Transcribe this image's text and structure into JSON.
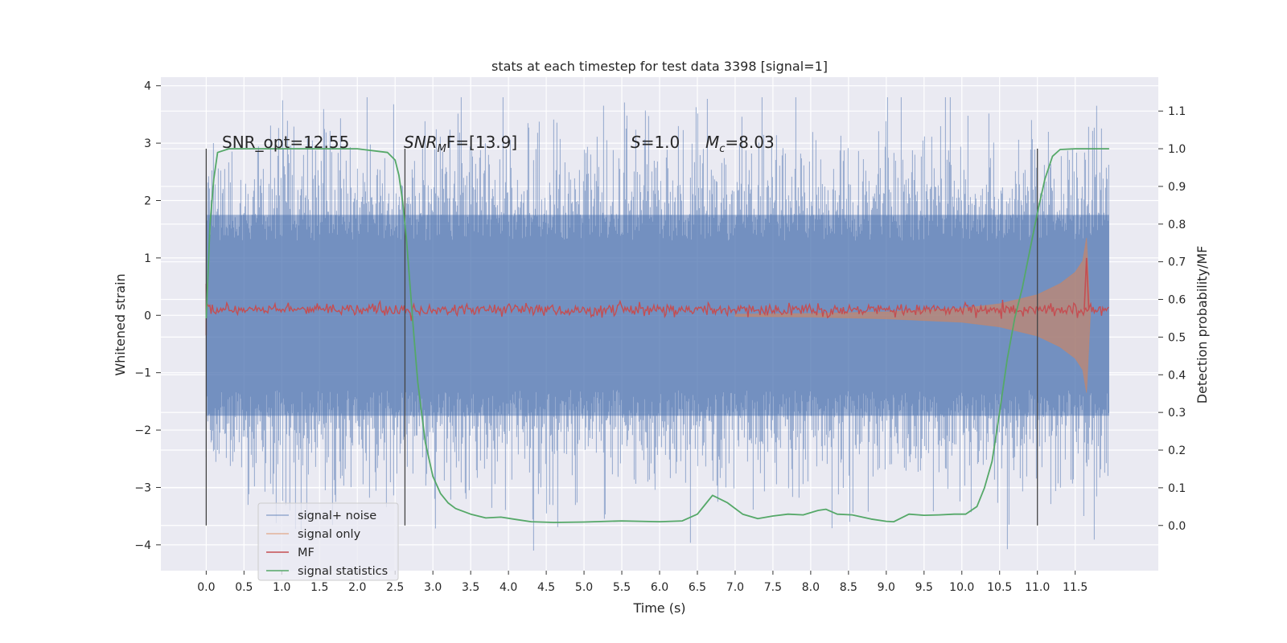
{
  "chart_data": {
    "type": "line",
    "title": "stats at each timestep for test data 3398 [signal=1]",
    "xlabel": "Time (s)",
    "ylabel": "Whitened strain",
    "y2label": "Detection probability/MF",
    "xlim": [
      -0.6,
      12.6
    ],
    "ylim": [
      -4.45,
      4.15
    ],
    "y2lim": [
      -0.12,
      1.19
    ],
    "xticks": [
      0.0,
      0.5,
      1.0,
      1.5,
      2.0,
      2.5,
      3.0,
      3.5,
      4.0,
      4.5,
      5.0,
      5.5,
      6.0,
      6.5,
      7.0,
      7.5,
      8.0,
      8.5,
      9.0,
      9.5,
      10.0,
      10.5,
      11.0,
      11.5
    ],
    "xtick_labels": [
      "0.0",
      "0.5",
      "1.0",
      "1.5",
      "2.0",
      "2.5",
      "3.0",
      "3.5",
      "4.0",
      "4.5",
      "5.0",
      "5.5",
      "6.0",
      "6.5",
      "7.0",
      "7.5",
      "8.0",
      "8.5",
      "9.0",
      "9.5",
      "10.0",
      "10.5",
      "11.0",
      "11.5"
    ],
    "yticks": [
      -4,
      -3,
      -2,
      -1,
      0,
      1,
      2,
      3,
      4
    ],
    "ytick_labels": [
      "−4",
      "−3",
      "−2",
      "−1",
      "0",
      "1",
      "2",
      "3",
      "4"
    ],
    "y2ticks": [
      0.0,
      0.1,
      0.2,
      0.3,
      0.4,
      0.5,
      0.6,
      0.7,
      0.8,
      0.9,
      1.0,
      1.1
    ],
    "y2tick_labels": [
      "0.0",
      "0.1",
      "0.2",
      "0.3",
      "0.4",
      "0.5",
      "0.6",
      "0.7",
      "0.8",
      "0.9",
      "1.0",
      "1.1"
    ],
    "grid": true,
    "legend_position": "lower-left",
    "series": [
      {
        "name": "signal+ noise",
        "color": "#4c72b0",
        "axis": "left",
        "style": "noise band",
        "x_range": [
          0.0,
          11.95
        ],
        "typical_range": [
          -1.75,
          1.75
        ],
        "peak_range": [
          -4.1,
          3.8
        ]
      },
      {
        "name": "signal only",
        "color": "#dd8452",
        "axis": "left",
        "style": "chirp envelope",
        "x": [
          7.0,
          8.0,
          9.0,
          10.0,
          10.5,
          11.0,
          11.3,
          11.5,
          11.6,
          11.65,
          11.7
        ],
        "amplitude": [
          0.02,
          0.03,
          0.06,
          0.12,
          0.2,
          0.36,
          0.55,
          0.75,
          0.95,
          1.35,
          0.0
        ]
      },
      {
        "name": "MF",
        "color": "#c44e52",
        "axis": "left",
        "style": "jittered line",
        "baseline": 0.1,
        "spike_x": 11.65,
        "spike_y": 1.0
      },
      {
        "name": "signal statistics",
        "color": "#55a868",
        "axis": "right",
        "x": [
          0.0,
          0.05,
          0.1,
          0.15,
          0.3,
          0.6,
          1.0,
          1.5,
          2.0,
          2.4,
          2.5,
          2.55,
          2.6,
          2.65,
          2.7,
          2.75,
          2.8,
          2.9,
          3.0,
          3.1,
          3.2,
          3.3,
          3.5,
          3.7,
          3.9,
          4.1,
          4.3,
          4.6,
          5.0,
          5.5,
          6.0,
          6.3,
          6.5,
          6.6,
          6.7,
          6.9,
          7.1,
          7.3,
          7.5,
          7.7,
          7.9,
          8.1,
          8.2,
          8.35,
          8.55,
          8.8,
          9.0,
          9.1,
          9.3,
          9.5,
          9.7,
          9.9,
          10.05,
          10.2,
          10.3,
          10.4,
          10.5,
          10.6,
          10.7,
          10.8,
          10.9,
          11.0,
          11.1,
          11.2,
          11.3,
          11.5,
          11.95
        ],
        "y": [
          0.55,
          0.8,
          0.92,
          0.99,
          1.0,
          1.0,
          1.0,
          1.0,
          1.0,
          0.99,
          0.97,
          0.93,
          0.86,
          0.76,
          0.63,
          0.5,
          0.38,
          0.22,
          0.13,
          0.085,
          0.06,
          0.045,
          0.03,
          0.02,
          0.022,
          0.016,
          0.01,
          0.008,
          0.009,
          0.012,
          0.01,
          0.012,
          0.03,
          0.055,
          0.08,
          0.06,
          0.03,
          0.018,
          0.025,
          0.03,
          0.028,
          0.04,
          0.043,
          0.03,
          0.028,
          0.017,
          0.011,
          0.01,
          0.03,
          0.027,
          0.028,
          0.03,
          0.03,
          0.05,
          0.1,
          0.17,
          0.3,
          0.44,
          0.55,
          0.63,
          0.73,
          0.83,
          0.92,
          0.98,
          0.998,
          1.0,
          1.0
        ]
      }
    ],
    "vertical_lines": [
      0.0,
      2.63,
      11.0
    ],
    "annotations": [
      {
        "text": "SNR_opt=12.55",
        "x": 0.2,
        "y": 3.0
      },
      {
        "text_parts": [
          "SNR",
          "M",
          "F=[13.9]"
        ],
        "x": 2.6,
        "y": 3.0
      },
      {
        "text_parts": [
          "S",
          "=1.0"
        ],
        "x": 5.6,
        "y": 3.0
      },
      {
        "text_parts": [
          "M",
          "c",
          "=8.03"
        ],
        "x": 6.6,
        "y": 3.0
      }
    ]
  }
}
